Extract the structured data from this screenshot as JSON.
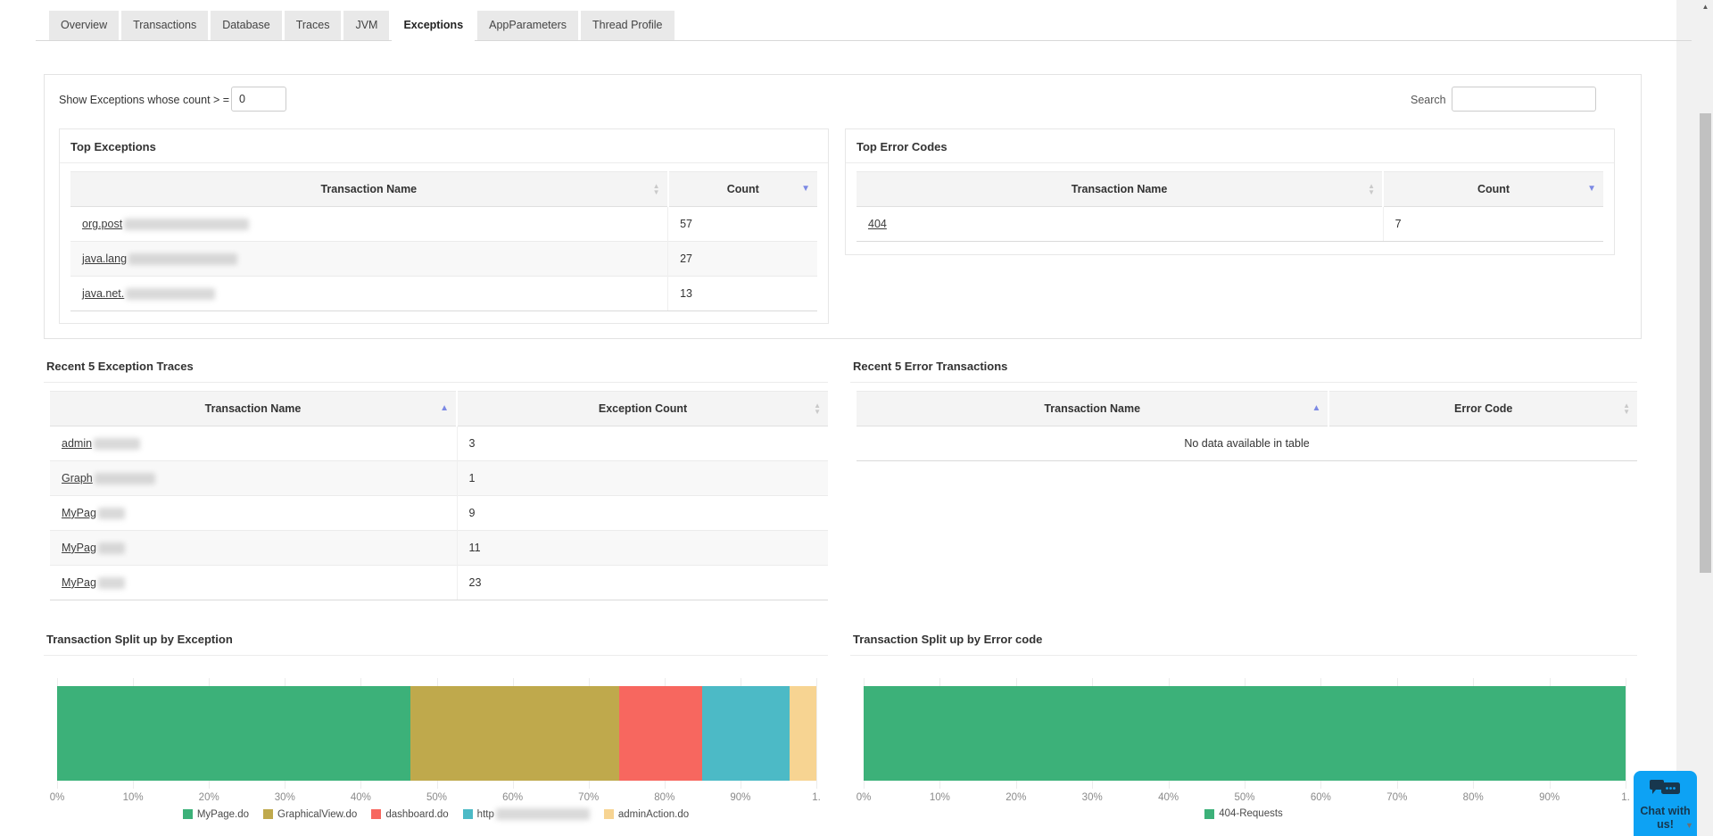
{
  "tabs": [
    {
      "label": "Overview",
      "active": false
    },
    {
      "label": "Transactions",
      "active": false
    },
    {
      "label": "Database",
      "active": false
    },
    {
      "label": "Traces",
      "active": false
    },
    {
      "label": "JVM",
      "active": false
    },
    {
      "label": "Exceptions",
      "active": true
    },
    {
      "label": "AppParameters",
      "active": false
    },
    {
      "label": "Thread Profile",
      "active": false
    }
  ],
  "filter": {
    "label": "Show Exceptions whose count > =",
    "value": "0"
  },
  "search": {
    "label": "Search",
    "value": ""
  },
  "tables": {
    "top_exceptions": {
      "title": "Top Exceptions",
      "columns": [
        {
          "label": "Transaction Name",
          "sort": "none"
        },
        {
          "label": "Count",
          "sort": "desc"
        }
      ],
      "rows": [
        {
          "name": "org.post",
          "redacted": true,
          "redact_width": 140,
          "value": "57"
        },
        {
          "name": "java.lang",
          "redacted": true,
          "redact_width": 122,
          "value": "27"
        },
        {
          "name": "java.net.",
          "redacted": true,
          "redact_width": 100,
          "value": "13"
        }
      ]
    },
    "top_error_codes": {
      "title": "Top Error Codes",
      "columns": [
        {
          "label": "Transaction Name",
          "sort": "none"
        },
        {
          "label": "Count",
          "sort": "desc"
        }
      ],
      "rows": [
        {
          "name": "404",
          "redacted": false,
          "redact_width": 0,
          "value": "7"
        }
      ]
    },
    "recent_exception_traces": {
      "title": "Recent 5 Exception Traces",
      "columns": [
        {
          "label": "Transaction Name",
          "sort": "asc"
        },
        {
          "label": "Exception Count",
          "sort": "none"
        }
      ],
      "rows": [
        {
          "name": "admin",
          "redacted": true,
          "redact_width": 52,
          "value": "3"
        },
        {
          "name": "Graph",
          "redacted": true,
          "redact_width": 68,
          "value": "1"
        },
        {
          "name": "MyPag",
          "redacted": true,
          "redact_width": 30,
          "value": "9"
        },
        {
          "name": "MyPag",
          "redacted": true,
          "redact_width": 30,
          "value": "11"
        },
        {
          "name": "MyPag",
          "redacted": true,
          "redact_width": 30,
          "value": "23"
        }
      ]
    },
    "recent_error_transactions": {
      "title": "Recent 5 Error Transactions",
      "columns": [
        {
          "label": "Transaction Name",
          "sort": "asc"
        },
        {
          "label": "Error Code",
          "sort": "none"
        }
      ],
      "rows": [],
      "empty_text": "No data available in table"
    }
  },
  "chart_data": [
    {
      "type": "bar",
      "orientation": "horizontal-stacked",
      "title": "Transaction Split up by Exception",
      "x_ticks": [
        "0%",
        "10%",
        "20%",
        "30%",
        "40%",
        "50%",
        "60%",
        "70%",
        "80%",
        "90%",
        "1."
      ],
      "xlim": [
        0,
        100
      ],
      "grid": true,
      "legend_position": "bottom",
      "series": [
        {
          "name": "MyPage.do",
          "percent": 46.5,
          "color": "#3cb179",
          "redacted": false
        },
        {
          "name": "GraphicalView.do",
          "percent": 27.5,
          "color": "#bfa94c",
          "redacted": false
        },
        {
          "name": "dashboard.do",
          "percent": 11.0,
          "color": "#f7675f",
          "redacted": false
        },
        {
          "name": "http",
          "percent": 11.5,
          "color": "#4cbac6",
          "redacted": true
        },
        {
          "name": "adminAction.do",
          "percent": 3.5,
          "color": "#f7d492",
          "redacted": false
        }
      ]
    },
    {
      "type": "bar",
      "orientation": "horizontal-stacked",
      "title": "Transaction Split up by Error code",
      "x_ticks": [
        "0%",
        "10%",
        "20%",
        "30%",
        "40%",
        "50%",
        "60%",
        "70%",
        "80%",
        "90%",
        "1."
      ],
      "xlim": [
        0,
        100
      ],
      "grid": true,
      "legend_position": "bottom",
      "series": [
        {
          "name": "404-Requests",
          "percent": 100,
          "color": "#3cb179",
          "redacted": false
        }
      ]
    }
  ],
  "chat": {
    "label": "Chat with us!"
  },
  "colors": {
    "accent_sort": "#7c89e4",
    "chat_blue": "#0da2f4",
    "chat_text": "#17374e",
    "green": "#3cb179",
    "olive": "#bfa94c",
    "red": "#f7675f",
    "teal": "#4cbac6",
    "orange": "#f7d492"
  }
}
